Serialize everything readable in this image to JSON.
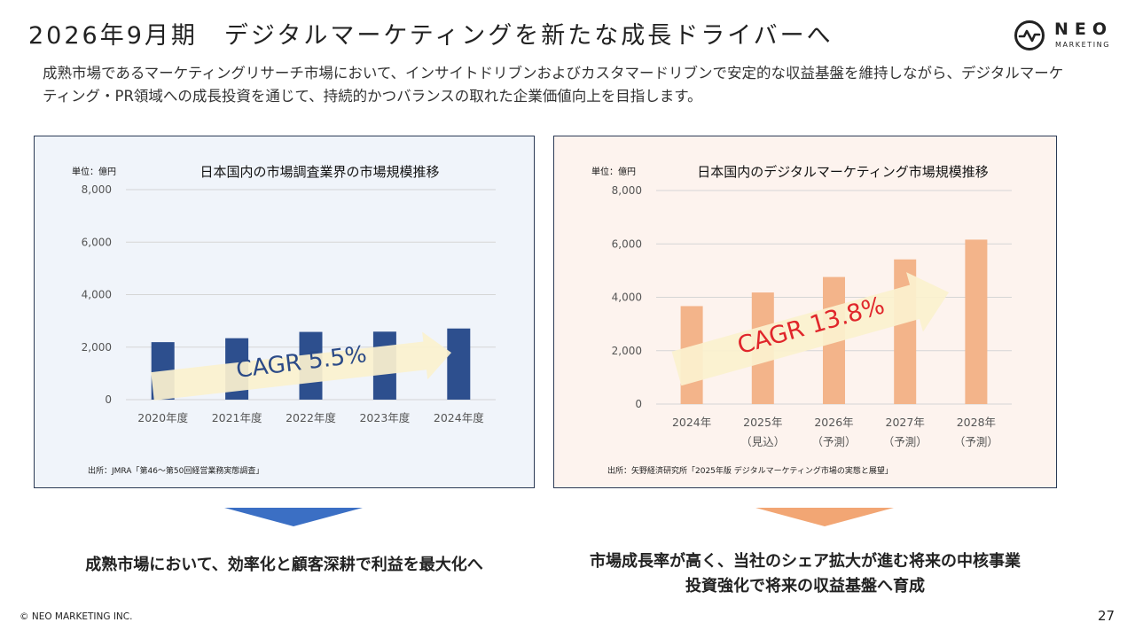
{
  "page": {
    "title": "2026年9月期　デジタルマーケティングを新たな成長ドライバーへ",
    "lead": "成熟市場であるマーケティングリサーチ市場において、インサイトドリブンおよびカスタマードリブンで安定的な収益基盤を維持しながら、デジタルマーケティング・PR領域への成長投資を通じて、持続的かつバランスの取れた企業価値向上を目指します。",
    "logo": {
      "name": "NEO",
      "sub": "MARKETING",
      "icon": "neo-pulse-logo-icon"
    },
    "footer": "© NEO MARKETING INC.",
    "page_number": "27",
    "colors": {
      "navy_bar": "#2d4f8e",
      "orange_bar": "#f3b48a",
      "cagr_left": "#2b4a87",
      "cagr_right": "#e0262b",
      "arrow_fill": "#fbf1cf",
      "left_triangle": "#3b6fc4",
      "right_triangle": "#f2a674"
    }
  },
  "conclusions": {
    "left": [
      "成熟市場において、効率化と顧客深耕で利益を最大化へ"
    ],
    "right": [
      "市場成長率が高く、当社のシェア拡大が進む将来の中核事業",
      "投資強化で将来の収益基盤へ育成"
    ]
  },
  "chart_data": [
    {
      "type": "bar",
      "title": "日本国内の市場調査業界の市場規模推移",
      "unit_label": "単位：億円",
      "categories": [
        [
          "2020年度"
        ],
        [
          "2021年度"
        ],
        [
          "2022年度"
        ],
        [
          "2023年度"
        ],
        [
          "2024年度"
        ]
      ],
      "values": [
        2190,
        2340,
        2580,
        2590,
        2710
      ],
      "ylim": [
        0,
        8000
      ],
      "yticks": [
        "0",
        "2,000",
        "4,000",
        "6,000",
        "8,000"
      ],
      "grid": true,
      "annotation": "CAGR  5.5%",
      "source": "出所：JMRA「第46～第50回経営業務実態調査」",
      "color": "#2d4f8e"
    },
    {
      "type": "bar",
      "title": "日本国内のデジタルマーケティング市場規模推移",
      "unit_label": "単位：億円",
      "categories": [
        [
          "2024年"
        ],
        [
          "2025年",
          "（見込）"
        ],
        [
          "2026年",
          "（予測）"
        ],
        [
          "2027年",
          "（予測）"
        ],
        [
          "2028年",
          "（予測）"
        ]
      ],
      "values": [
        3670,
        4180,
        4760,
        5420,
        6160
      ],
      "ylim": [
        0,
        8000
      ],
      "yticks": [
        "0",
        "2,000",
        "4,000",
        "6,000",
        "8,000"
      ],
      "grid": true,
      "annotation": "CAGR  13.8%",
      "source": "出所：矢野経済研究所「2025年版 デジタルマーケティング市場の実態と展望」",
      "color": "#f3b48a"
    }
  ]
}
